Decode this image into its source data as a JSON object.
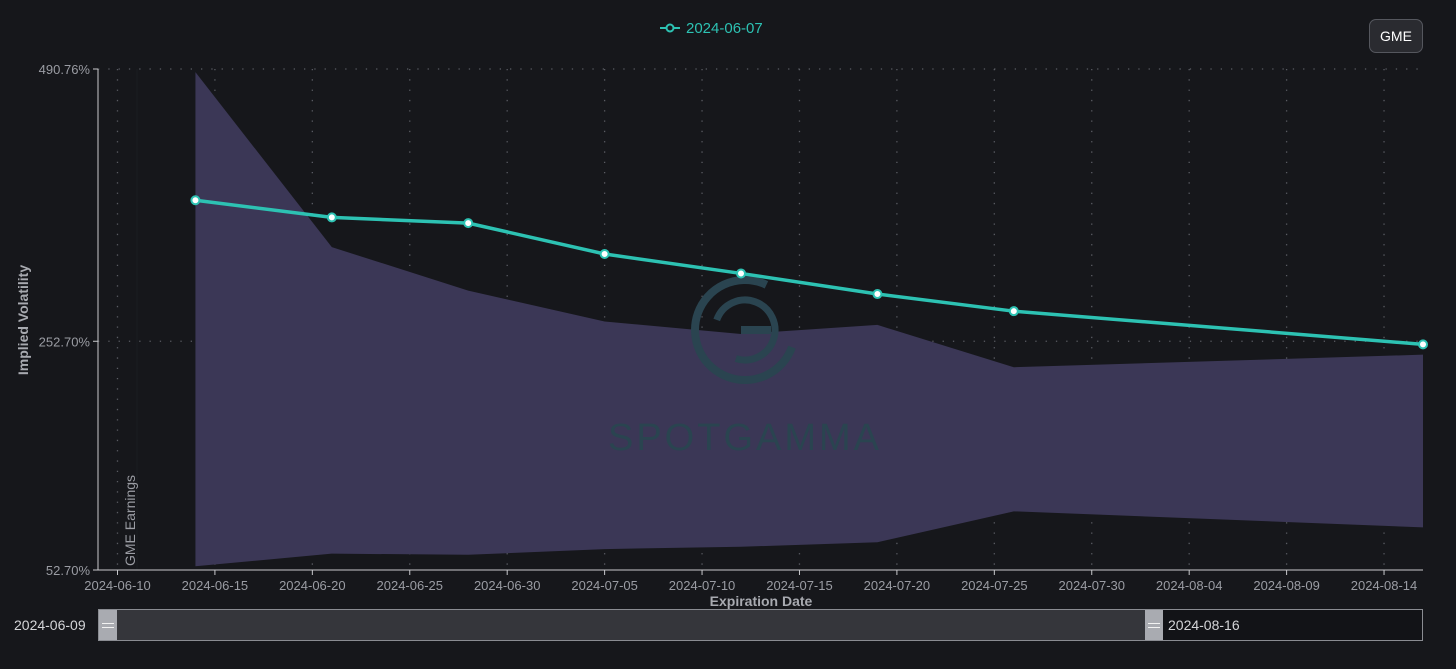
{
  "colors": {
    "background": "#16171b",
    "line": "#2dc2b3",
    "band": "#3b3756",
    "grid": "#5a5c63",
    "axis": "#c9cacd",
    "watermark": "#2a4450"
  },
  "legend": {
    "label": "2024-06-07",
    "icon": "circle-line-marker-icon"
  },
  "ticker_button": {
    "label": "GME"
  },
  "watermark": {
    "text": "SPOTGAMMA",
    "icon": "spotgamma-logo-icon"
  },
  "annotation": {
    "text": "GME Earnings",
    "date": "2024-06-11"
  },
  "range_slider": {
    "start_label": "2024-06-09",
    "end_label": "2024-08-16"
  },
  "chart_data": {
    "type": "line",
    "xlabel": "Expiration Date",
    "ylabel": "Implied Volatility",
    "xlim": [
      "2024-06-09",
      "2024-08-16"
    ],
    "ylim": [
      52.7,
      490.76
    ],
    "y_ticks": [
      "52.70%",
      "252.70%",
      "490.76%"
    ],
    "x_ticks": [
      "2024-06-10",
      "2024-06-15",
      "2024-06-20",
      "2024-06-25",
      "2024-06-30",
      "2024-07-05",
      "2024-07-10",
      "2024-07-15",
      "2024-07-20",
      "2024-07-25",
      "2024-07-30",
      "2024-08-04",
      "2024-08-09",
      "2024-08-14"
    ],
    "grid": true,
    "legend_position": "top-center",
    "series": [
      {
        "name": "2024-06-07",
        "x": [
          "2024-06-14",
          "2024-06-21",
          "2024-06-28",
          "2024-07-05",
          "2024-07-12",
          "2024-07-19",
          "2024-07-26",
          "2024-08-16"
        ],
        "values": [
          376,
          361,
          356,
          329,
          312,
          294,
          279,
          250
        ]
      }
    ],
    "band": {
      "x": [
        "2024-06-14",
        "2024-06-21",
        "2024-06-28",
        "2024-07-05",
        "2024-07-12",
        "2024-07-19",
        "2024-07-26",
        "2024-08-16"
      ],
      "upper": [
        488,
        335,
        297,
        270,
        259,
        267,
        230,
        241
      ],
      "lower": [
        56,
        67,
        66,
        71,
        73,
        77,
        104,
        90
      ]
    }
  }
}
